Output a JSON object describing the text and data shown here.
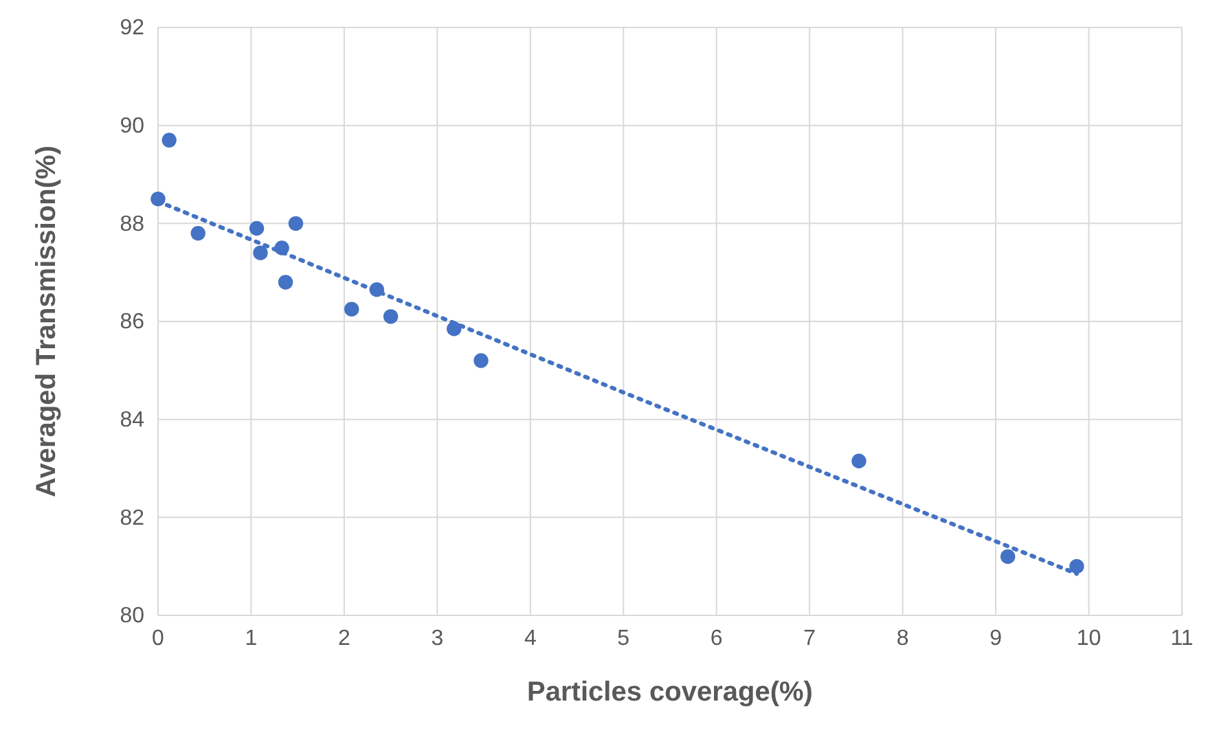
{
  "chart_data": {
    "type": "scatter",
    "xlabel": "Particles coverage(%)",
    "ylabel": "Averaged Transmission(%)",
    "xlim": [
      0,
      11
    ],
    "xticks": [
      0,
      1,
      2,
      3,
      4,
      5,
      6,
      7,
      8,
      9,
      10,
      11
    ],
    "ylim": [
      80,
      92
    ],
    "yticks": [
      80,
      82,
      84,
      86,
      88,
      90,
      92
    ],
    "grid": true,
    "marker": "circle",
    "series": [
      {
        "color": "#4472c4",
        "x": [
          0,
          0.12,
          0.43,
          1.06,
          1.1,
          1.48,
          1.33,
          1.37,
          2.08,
          2.35,
          2.5,
          3.18,
          3.47,
          7.53,
          9.13,
          9.87
        ],
        "values": [
          88.5,
          89.7,
          87.8,
          87.9,
          87.4,
          88.0,
          87.5,
          86.8,
          86.25,
          86.65,
          86.1,
          85.85,
          85.2,
          83.15,
          81.2,
          81.0
        ]
      },
      {
        "type": "line",
        "color": "#4472c4",
        "line_style": "dotted",
        "marker": "none",
        "x": [
          0,
          5,
          9.87
        ],
        "values": [
          88.45,
          84.55,
          80.85
        ]
      }
    ]
  }
}
